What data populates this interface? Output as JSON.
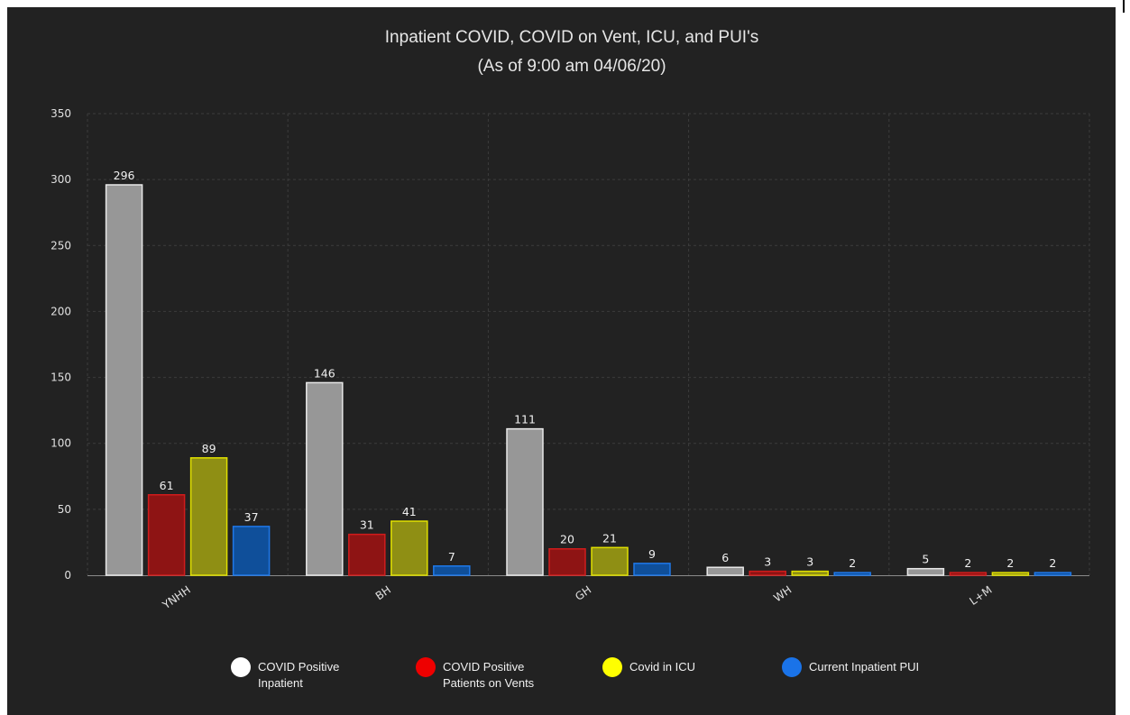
{
  "chart_data": {
    "type": "bar",
    "title": "Inpatient COVID, COVID on Vent, ICU, and PUI's",
    "subtitle": "(As of 9:00 am 04/06/20)",
    "xlabel": "",
    "ylabel": "",
    "ylim": [
      0,
      350
    ],
    "yticks": [
      0,
      50,
      100,
      150,
      200,
      250,
      300,
      350
    ],
    "grid": true,
    "legend_position": "bottom",
    "categories": [
      "YNHH",
      "BH",
      "GH",
      "WH",
      "L+M"
    ],
    "series": [
      {
        "name_lines": [
          "COVID Positive",
          "Inpatient"
        ],
        "values": [
          296,
          146,
          111,
          6,
          5
        ],
        "fill": "#979797",
        "stroke": "#e8e8e8",
        "legend_color": "#ffffff"
      },
      {
        "name_lines": [
          "COVID Positive",
          "Patients on Vents"
        ],
        "values": [
          61,
          31,
          20,
          3,
          2
        ],
        "fill": "#8e1414",
        "stroke": "#d01c1c",
        "legend_color": "#ee0000"
      },
      {
        "name_lines": [
          "Covid in ICU"
        ],
        "values": [
          89,
          41,
          21,
          3,
          2
        ],
        "fill": "#8f8f14",
        "stroke": "#e0e000",
        "legend_color": "#ffff00"
      },
      {
        "name_lines": [
          "Current Inpatient PUI"
        ],
        "values": [
          37,
          7,
          9,
          2,
          2
        ],
        "fill": "#0f4f9a",
        "stroke": "#1f78e8",
        "legend_color": "#1a73e8"
      }
    ]
  }
}
